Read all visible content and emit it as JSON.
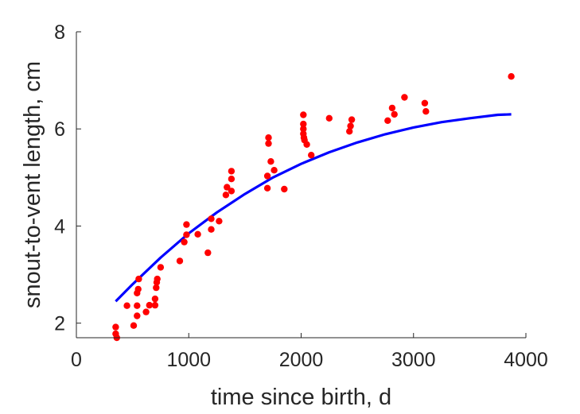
{
  "chart_data": {
    "type": "scatter",
    "xlabel": "time since birth, d",
    "ylabel": "snout-to-vent length, cm",
    "xlim": [
      0,
      4000
    ],
    "ylim": [
      1.7,
      8
    ],
    "xticks": [
      0,
      1000,
      2000,
      3000,
      4000
    ],
    "xtick_labels": [
      "0",
      "1000",
      "2000",
      "3000",
      "4000"
    ],
    "yticks": [
      2,
      4,
      6,
      8
    ],
    "ytick_labels": [
      "2",
      "4",
      "6",
      "8"
    ],
    "grid": false,
    "legend": "none",
    "series": [
      {
        "kind": "points",
        "color": "#ff0000",
        "x": [
          350,
          350,
          360,
          450,
          510,
          540,
          540,
          540,
          550,
          555,
          620,
          650,
          700,
          700,
          710,
          715,
          720,
          750,
          920,
          960,
          980,
          980,
          1080,
          1170,
          1200,
          1200,
          1270,
          1330,
          1340,
          1380,
          1380,
          1380,
          1700,
          1700,
          1710,
          1710,
          1730,
          1760,
          1850,
          2020,
          2020,
          2020,
          2020,
          2025,
          2030,
          2050,
          2090,
          2250,
          2430,
          2440,
          2450,
          2770,
          2810,
          2830,
          2920,
          3100,
          3110,
          3870
        ],
        "y": [
          1.92,
          1.78,
          1.7,
          2.36,
          1.95,
          2.36,
          2.15,
          2.62,
          2.7,
          2.91,
          2.23,
          2.37,
          2.37,
          2.5,
          2.73,
          2.84,
          2.91,
          3.15,
          3.28,
          3.67,
          3.82,
          4.03,
          3.83,
          3.45,
          4.15,
          3.93,
          4.1,
          4.64,
          4.8,
          4.72,
          4.97,
          5.13,
          5.03,
          4.78,
          5.7,
          5.82,
          5.33,
          5.15,
          4.76,
          5.9,
          6.1,
          6.29,
          6.0,
          5.82,
          5.77,
          5.68,
          5.46,
          6.22,
          5.95,
          6.06,
          6.19,
          6.17,
          6.43,
          6.3,
          6.65,
          6.53,
          6.36,
          7.08
        ]
      },
      {
        "kind": "fit-curve",
        "color": "#0000ff",
        "x": [
          350,
          500,
          750,
          1000,
          1250,
          1500,
          1750,
          2000,
          2250,
          2500,
          2750,
          3000,
          3250,
          3500,
          3750,
          3870
        ],
        "y": [
          2.45,
          2.8,
          3.35,
          3.85,
          4.28,
          4.66,
          5.0,
          5.28,
          5.52,
          5.72,
          5.89,
          6.03,
          6.14,
          6.22,
          6.29,
          6.3
        ]
      }
    ]
  }
}
